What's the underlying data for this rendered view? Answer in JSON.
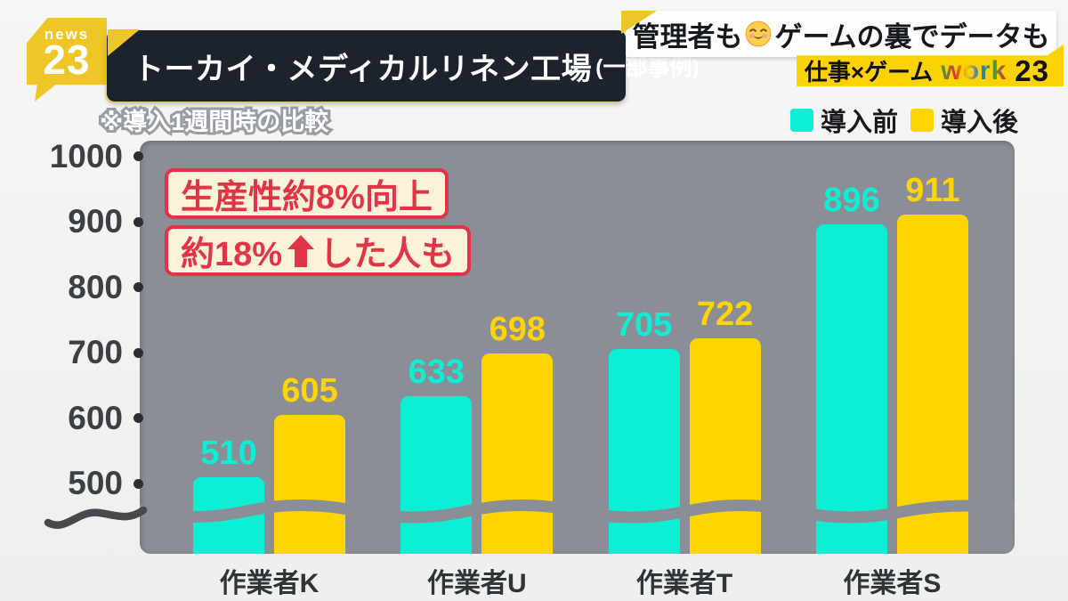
{
  "channel_logo": {
    "line1": "news",
    "line2": "23"
  },
  "banner": {
    "title": "トーカイ・メディカルリネン工場",
    "subtitle": "(一部事例)"
  },
  "headline": {
    "prefix": "管理者も",
    "suffix": "ゲームの裏でデータも",
    "emoji": "relieved-smiling-face"
  },
  "program_tag": {
    "prefix": "仕事×ゲーム",
    "brand": "work",
    "number": "23"
  },
  "note": "※導入1週間時の比較",
  "legend": {
    "items": [
      {
        "label": "導入前",
        "color": "#0CEFD4"
      },
      {
        "label": "導入後",
        "color": "#FFD400"
      }
    ]
  },
  "annotations": {
    "box1": "生産性約8%向上",
    "box2_prefix": "約18%",
    "box2_suffix": "した人も"
  },
  "colors": {
    "before": "#0CEFD4",
    "after": "#FFD400",
    "panel": "#8b8e96",
    "accent_red": "#e23347",
    "brand_yellow": "#efc627"
  },
  "chart_data": {
    "type": "bar",
    "title": "トーカイ・メディカルリネン工場 (一部事例) 導入1週間時の比較",
    "categories": [
      "作業者K",
      "作業者U",
      "作業者T",
      "作業者S"
    ],
    "series": [
      {
        "name": "導入前",
        "color": "#0CEFD4",
        "values": [
          510,
          633,
          705,
          896
        ]
      },
      {
        "name": "導入後",
        "color": "#FFD400",
        "values": [
          605,
          698,
          722,
          911
        ]
      }
    ],
    "xlabel": "",
    "ylabel": "",
    "ylim": [
      500,
      1000
    ],
    "yticks": [
      500,
      600,
      700,
      800,
      900,
      1000
    ],
    "axis_break": true,
    "grid": false,
    "legend_position": "top-right",
    "value_labels": true
  }
}
